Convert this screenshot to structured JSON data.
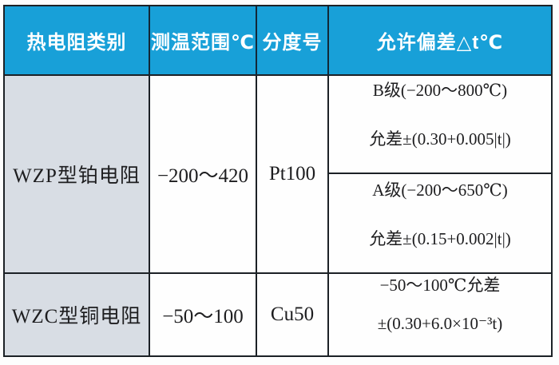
{
  "colors": {
    "header_bg": "#18a0d8",
    "header_text": "#ffffff",
    "label_bg": "#d8dde4",
    "border": "#1c2126",
    "body_text": "#1d1d1f",
    "page_bg": "#fdfdfd"
  },
  "chart_data": {
    "type": "table",
    "title": "",
    "columns": [
      "热电阻类别",
      "测温范围℃",
      "分度号",
      "允许偏差△t℃"
    ],
    "rows": [
      {
        "category": "WZP型铂电阻",
        "range": "−200～420",
        "graduation": "Pt100",
        "tolerance": [
          {
            "grade": "B级(−200～800℃)",
            "formula": "允差±(0.30+0.005|t|)"
          },
          {
            "grade": "A级(−200～650℃)",
            "formula": "允差±(0.15+0.002|t|)"
          }
        ]
      },
      {
        "category": "WZC型铜电阻",
        "range": "−50～100",
        "graduation": "Cu50",
        "tolerance": [
          {
            "grade": "−50～100℃允差",
            "formula": "±(0.30+6.0×10⁻³t)"
          }
        ]
      }
    ]
  }
}
